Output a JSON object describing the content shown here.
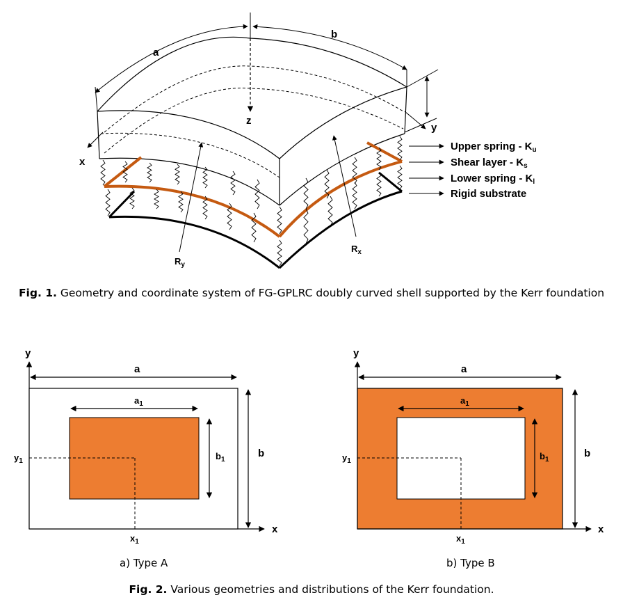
{
  "fig1": {
    "dims": {
      "a": "a",
      "b": "b",
      "z": "z",
      "x": "x",
      "y": "y"
    },
    "radii": {
      "ry": "R",
      "ry_sub": "y",
      "rx": "R",
      "rx_sub": "x"
    },
    "legend": [
      {
        "text": "Upper spring - K",
        "sub": "u"
      },
      {
        "text": "Shear layer - K",
        "sub": "s"
      },
      {
        "text": "Lower spring - K",
        "sub": "l"
      },
      {
        "text": "Rigid substrate",
        "sub": ""
      }
    ],
    "caption_label": "Fig. 1.",
    "caption_text": " Geometry and coordinate system of FG-GPLRC doubly curved shell supported by the Kerr foundation"
  },
  "fig2": {
    "panels": [
      {
        "id": "A",
        "a": "a",
        "a1": "a",
        "a1_sub": "1",
        "b": "b",
        "b1": "b",
        "b1_sub": "1",
        "x1": "x",
        "x1_sub": "1",
        "y1": "y",
        "y1_sub": "1",
        "x": "x",
        "y": "y",
        "label": "a) Type A",
        "fill_inner": true
      },
      {
        "id": "B",
        "a": "a",
        "a1": "a",
        "a1_sub": "1",
        "b": "b",
        "b1": "b",
        "b1_sub": "1",
        "x1": "x",
        "x1_sub": "1",
        "y1": "y",
        "y1_sub": "1",
        "x": "x",
        "y": "y",
        "label": "b) Type B",
        "fill_inner": false
      }
    ],
    "caption_label": "Fig. 2.",
    "caption_text": " Various geometries and distributions of the Kerr foundation."
  },
  "colors": {
    "orange": "#ED7D31",
    "shear": "#C55A11",
    "line": "#000000"
  }
}
